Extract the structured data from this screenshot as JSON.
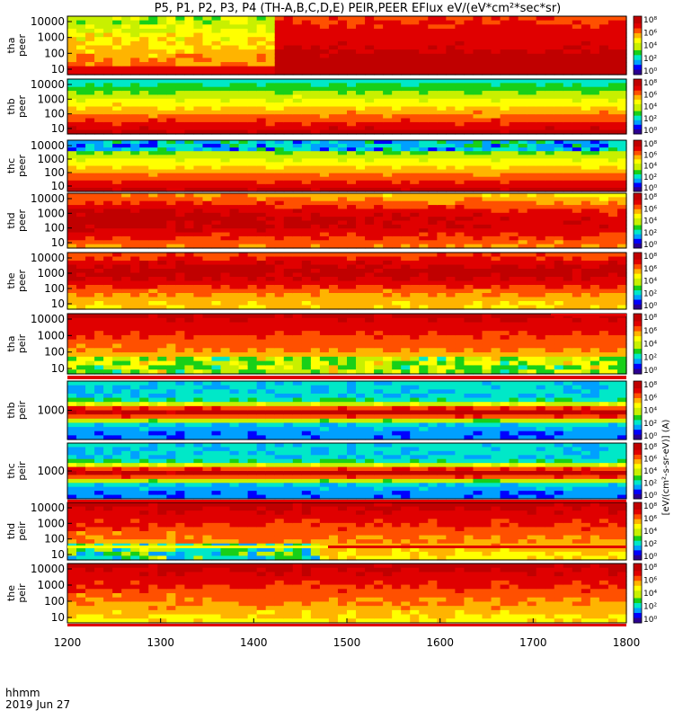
{
  "title": "P5, P1, P2, P3, P4 (TH-A,B,C,D,E) PEIR,PEER EFlux eV/(eV*cm²*sec*sr)",
  "colorbar_label": "[eV/(cm²-s-sr-eV)] (A)",
  "footer": {
    "line1": "hhmm",
    "line2": "2019 Jun 27"
  },
  "colormap": [
    "#2b0091",
    "#0000ff",
    "#00a0ff",
    "#00e8c8",
    "#18d018",
    "#c8f000",
    "#ffff00",
    "#ffb400",
    "#ff5000",
    "#e00000",
    "#c00000"
  ],
  "chart_data": {
    "type": "heatmap",
    "x_axis": {
      "ticks": [
        "1200",
        "1300",
        "1400",
        "1500",
        "1600",
        "1700",
        "1800"
      ],
      "range": [
        1200,
        1800
      ]
    },
    "colorbar": {
      "ticks": [
        "10⁰",
        "10²",
        "10⁴",
        "10⁶",
        "10⁸"
      ]
    },
    "panels": [
      {
        "id": "tha-peer",
        "label_top": "tha",
        "label_bottom": "peer",
        "y_ticks": [
          "10000",
          "1000",
          "100",
          "10"
        ],
        "mode": "peer_a"
      },
      {
        "id": "thb-peer",
        "label_top": "thb",
        "label_bottom": "peer",
        "y_ticks": [
          "10000",
          "1000",
          "100",
          "10"
        ],
        "mode": "peer_b"
      },
      {
        "id": "thc-peer",
        "label_top": "thc",
        "label_bottom": "peer",
        "y_ticks": [
          "10000",
          "1000",
          "100",
          "10"
        ],
        "mode": "peer_c"
      },
      {
        "id": "thd-peer",
        "label_top": "thd",
        "label_bottom": "peer",
        "y_ticks": [
          "10000",
          "1000",
          "100",
          "10"
        ],
        "mode": "peer_d"
      },
      {
        "id": "the-peer",
        "label_top": "the",
        "label_bottom": "peer",
        "y_ticks": [
          "10000",
          "1000",
          "100",
          "10"
        ],
        "mode": "peer_e"
      },
      {
        "id": "tha-peir",
        "label_top": "tha",
        "label_bottom": "peir",
        "y_ticks": [
          "10000",
          "1000",
          "100",
          "10"
        ],
        "mode": "peir_a"
      },
      {
        "id": "thb-peir",
        "label_top": "thb",
        "label_bottom": "peir",
        "y_ticks": [
          "1000"
        ],
        "mode": "peir_b"
      },
      {
        "id": "thc-peir",
        "label_top": "thc",
        "label_bottom": "peir",
        "y_ticks": [
          "1000"
        ],
        "mode": "peir_c"
      },
      {
        "id": "thd-peir",
        "label_top": "thd",
        "label_bottom": "peir",
        "y_ticks": [
          "10000",
          "1000",
          "100",
          "10"
        ],
        "mode": "peir_d"
      },
      {
        "id": "the-peir",
        "label_top": "the",
        "label_bottom": "peir",
        "y_ticks": [
          "10000",
          "1000",
          "100",
          "10"
        ],
        "mode": "peir_e"
      }
    ]
  }
}
